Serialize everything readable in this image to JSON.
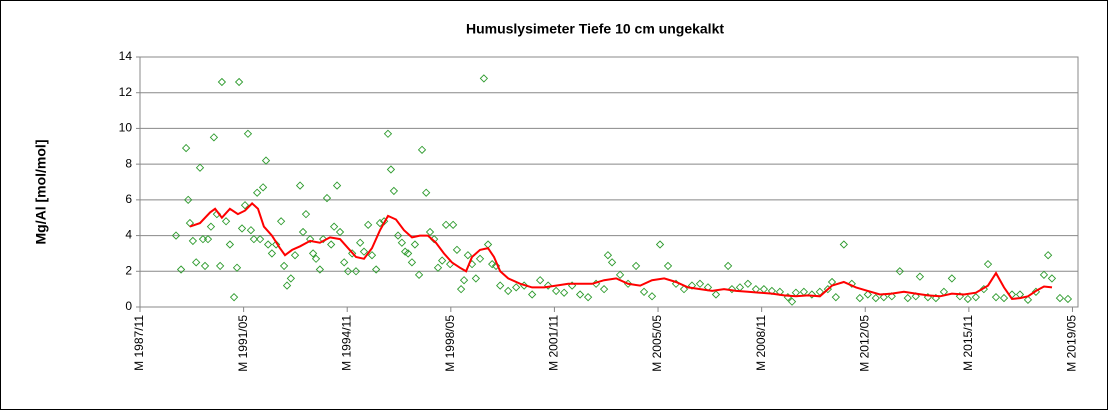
{
  "chart_data": {
    "type": "scatter",
    "title": "Humuslysimeter Tiefe  10 cm   ungekalkt",
    "y_label": "Mg/Al [mol/mol]",
    "ylim": [
      0,
      14
    ],
    "yticks": [
      0,
      2,
      4,
      6,
      8,
      10,
      12,
      14
    ],
    "xlim": [
      1987.833,
      2019.52
    ],
    "xticks": [
      {
        "value": 1987.833,
        "label": "M 1987/11"
      },
      {
        "value": 1991.333,
        "label": "M 1991/05"
      },
      {
        "value": 1994.833,
        "label": "M 1994/11"
      },
      {
        "value": 1998.333,
        "label": "M 1998/05"
      },
      {
        "value": 2001.833,
        "label": "M 2001/11"
      },
      {
        "value": 2005.333,
        "label": "M 2005/05"
      },
      {
        "value": 2008.833,
        "label": "M 2008/11"
      },
      {
        "value": 2012.333,
        "label": "M 2012/05"
      },
      {
        "value": 2015.833,
        "label": "M 2015/11"
      },
      {
        "value": 2019.333,
        "label": "M 2019/05"
      }
    ],
    "grid": true,
    "series": [
      {
        "color": "#2e9b2e",
        "marker": "diamond",
        "x": [
          1989.05,
          1989.22,
          1989.39,
          1989.46,
          1989.52,
          1989.62,
          1989.73,
          1989.86,
          1989.96,
          1990.03,
          1990.13,
          1990.23,
          1990.33,
          1990.43,
          1990.54,
          1990.6,
          1990.74,
          1990.87,
          1991.01,
          1991.11,
          1991.18,
          1991.28,
          1991.38,
          1991.48,
          1991.58,
          1991.68,
          1991.79,
          1991.89,
          1991.99,
          1992.09,
          1992.16,
          1992.29,
          1992.43,
          1992.6,
          1992.7,
          1992.8,
          1992.93,
          1993.07,
          1993.24,
          1993.34,
          1993.44,
          1993.58,
          1993.68,
          1993.78,
          1993.91,
          1994.02,
          1994.15,
          1994.29,
          1994.39,
          1994.49,
          1994.59,
          1994.73,
          1994.86,
          1995.0,
          1995.13,
          1995.27,
          1995.4,
          1995.54,
          1995.67,
          1995.81,
          1995.94,
          1996.08,
          1996.21,
          1996.31,
          1996.41,
          1996.55,
          1996.68,
          1996.79,
          1996.89,
          1997.02,
          1997.12,
          1997.26,
          1997.36,
          1997.5,
          1997.63,
          1997.77,
          1997.9,
          1998.04,
          1998.17,
          1998.31,
          1998.41,
          1998.54,
          1998.68,
          1998.78,
          1998.91,
          1999.05,
          1999.18,
          1999.32,
          1999.45,
          1999.59,
          1999.73,
          1999.86,
          2000.0,
          2000.27,
          2000.54,
          2000.81,
          2001.08,
          2001.35,
          2001.62,
          2001.89,
          2002.16,
          2002.43,
          2002.7,
          2002.97,
          2003.24,
          2003.51,
          2003.64,
          2003.78,
          2004.05,
          2004.32,
          2004.59,
          2004.86,
          2005.13,
          2005.4,
          2005.67,
          2005.94,
          2006.21,
          2006.48,
          2006.75,
          2007.02,
          2007.29,
          2007.7,
          2007.83,
          2008.1,
          2008.37,
          2008.64,
          2008.91,
          2009.18,
          2009.45,
          2009.72,
          2009.86,
          2009.99,
          2010.26,
          2010.53,
          2010.8,
          2011.07,
          2011.21,
          2011.34,
          2011.61,
          2011.88,
          2012.15,
          2012.42,
          2012.69,
          2012.96,
          2013.23,
          2013.5,
          2013.77,
          2014.04,
          2014.18,
          2014.45,
          2014.72,
          2014.99,
          2015.26,
          2015.53,
          2015.8,
          2016.07,
          2016.34,
          2016.48,
          2016.75,
          2017.02,
          2017.29,
          2017.56,
          2017.83,
          2018.1,
          2018.37,
          2018.51,
          2018.64,
          2018.91,
          2019.18
        ],
        "values": [
          4.0,
          2.1,
          8.9,
          6.0,
          4.7,
          3.7,
          2.5,
          7.8,
          3.8,
          2.3,
          3.8,
          4.5,
          9.5,
          5.2,
          2.3,
          12.6,
          4.8,
          3.5,
          0.55,
          2.2,
          12.6,
          4.4,
          5.7,
          9.7,
          4.3,
          3.8,
          6.4,
          3.8,
          6.7,
          8.2,
          3.5,
          3.0,
          3.5,
          4.8,
          2.3,
          1.2,
          1.6,
          2.9,
          6.8,
          4.2,
          5.2,
          3.8,
          3.0,
          2.7,
          2.1,
          3.8,
          6.1,
          3.5,
          4.5,
          6.8,
          4.2,
          2.5,
          2.0,
          3.0,
          2.0,
          3.6,
          3.1,
          4.6,
          2.9,
          2.1,
          4.7,
          4.8,
          9.7,
          7.7,
          6.5,
          4.0,
          3.6,
          3.1,
          3.0,
          2.5,
          3.5,
          1.8,
          8.8,
          6.4,
          4.2,
          3.8,
          2.2,
          2.6,
          4.6,
          2.4,
          4.6,
          3.2,
          1.0,
          1.5,
          2.9,
          2.4,
          1.6,
          2.7,
          12.8,
          3.5,
          2.4,
          2.3,
          1.2,
          0.9,
          1.1,
          1.2,
          0.7,
          1.5,
          1.2,
          0.9,
          0.8,
          1.2,
          0.7,
          0.55,
          1.3,
          1.0,
          2.9,
          2.5,
          1.8,
          1.3,
          2.3,
          0.85,
          0.6,
          3.5,
          2.3,
          1.3,
          1.0,
          1.2,
          1.3,
          1.1,
          0.7,
          2.3,
          1.0,
          1.1,
          1.3,
          1.0,
          1.0,
          0.9,
          0.85,
          0.55,
          0.3,
          0.8,
          0.85,
          0.7,
          0.85,
          1.0,
          1.4,
          0.55,
          3.5,
          1.3,
          0.5,
          0.7,
          0.5,
          0.55,
          0.6,
          2.0,
          0.5,
          0.6,
          1.7,
          0.55,
          0.5,
          0.85,
          1.6,
          0.6,
          0.45,
          0.55,
          1.0,
          2.4,
          0.55,
          0.5,
          0.7,
          0.7,
          0.4,
          0.85,
          1.8,
          2.9,
          1.6,
          0.5,
          0.45
        ]
      },
      {
        "color": "#ff0000",
        "marker": "line",
        "x": [
          1989.52,
          1989.86,
          1990.2,
          1990.37,
          1990.6,
          1990.87,
          1991.14,
          1991.38,
          1991.62,
          1991.82,
          1992.02,
          1992.29,
          1992.56,
          1992.73,
          1992.97,
          1993.24,
          1993.58,
          1993.91,
          1994.25,
          1994.59,
          1994.86,
          1995.13,
          1995.4,
          1995.67,
          1995.94,
          1996.21,
          1996.48,
          1996.75,
          1997.02,
          1997.29,
          1997.56,
          1997.83,
          1998.1,
          1998.37,
          1998.64,
          1998.85,
          1999.05,
          1999.32,
          1999.59,
          1999.79,
          2000.0,
          2000.27,
          2000.68,
          2001.08,
          2001.49,
          2001.89,
          2002.3,
          2002.7,
          2003.11,
          2003.51,
          2003.92,
          2004.32,
          2004.73,
          2005.13,
          2005.54,
          2005.94,
          2006.35,
          2006.75,
          2007.16,
          2007.56,
          2007.97,
          2008.37,
          2008.78,
          2009.18,
          2009.59,
          2009.99,
          2010.4,
          2010.8,
          2011.21,
          2011.61,
          2012.02,
          2012.42,
          2012.83,
          2013.23,
          2013.64,
          2014.04,
          2014.45,
          2014.86,
          2015.26,
          2015.67,
          2016.07,
          2016.48,
          2016.75,
          2017.02,
          2017.29,
          2017.56,
          2017.83,
          2018.1,
          2018.37,
          2018.64
        ],
        "values": [
          4.5,
          4.7,
          5.3,
          5.5,
          5.0,
          5.5,
          5.2,
          5.4,
          5.8,
          5.5,
          4.5,
          4.0,
          3.3,
          2.9,
          3.2,
          3.4,
          3.7,
          3.6,
          3.9,
          3.8,
          3.3,
          2.8,
          2.7,
          3.3,
          4.3,
          5.1,
          4.9,
          4.3,
          3.9,
          4.0,
          4.0,
          3.6,
          3.0,
          2.5,
          2.2,
          2.0,
          2.8,
          3.2,
          3.3,
          2.8,
          2.0,
          1.6,
          1.3,
          1.1,
          1.1,
          1.2,
          1.3,
          1.3,
          1.3,
          1.5,
          1.6,
          1.3,
          1.2,
          1.5,
          1.6,
          1.4,
          1.1,
          1.0,
          0.9,
          1.0,
          0.9,
          0.85,
          0.8,
          0.75,
          0.65,
          0.6,
          0.65,
          0.6,
          1.2,
          1.4,
          1.1,
          0.9,
          0.7,
          0.75,
          0.85,
          0.75,
          0.65,
          0.6,
          0.75,
          0.7,
          0.8,
          1.2,
          1.9,
          1.1,
          0.45,
          0.5,
          0.6,
          0.9,
          1.15,
          1.1
        ]
      }
    ]
  }
}
